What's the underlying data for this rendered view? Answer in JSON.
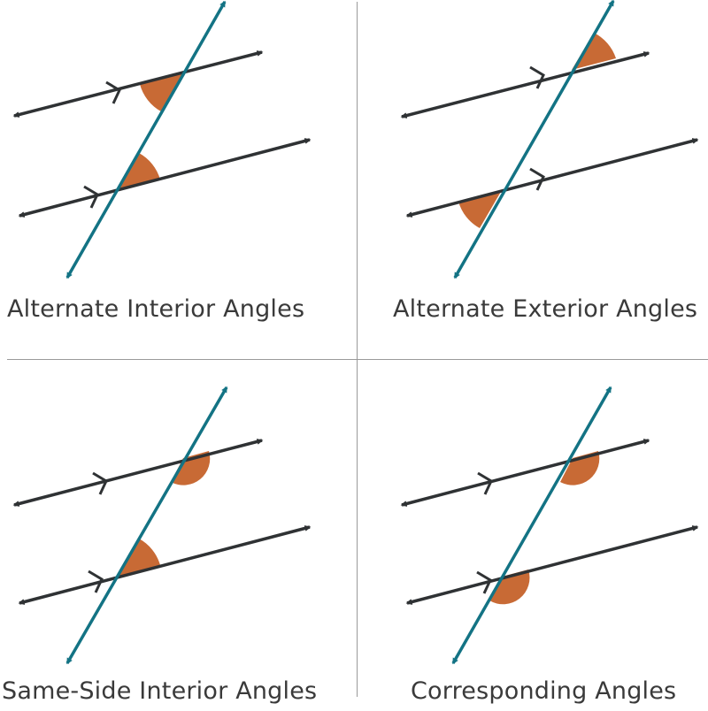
{
  "panels": [
    {
      "caption": "Alternate Interior Angles"
    },
    {
      "caption": "Alternate Exterior Angles"
    },
    {
      "caption": "Same-Side Interior Angles"
    },
    {
      "caption": "Corresponding Angles"
    }
  ],
  "colors": {
    "parallel_line": "#2f3234",
    "transversal": "#137384",
    "angle_fill": "#c86a35",
    "divider": "#9a9a9a",
    "text": "#3a3a3a"
  }
}
